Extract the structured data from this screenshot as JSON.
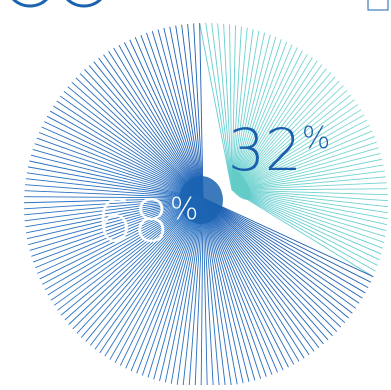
{
  "chart_data": {
    "type": "pie",
    "style": "radial-lines",
    "title": "",
    "slices": [
      {
        "name": "",
        "value": 32,
        "label": "32",
        "unit": "%",
        "color": "#5fd0c8"
      },
      {
        "name": "",
        "value": 68,
        "label": "68",
        "unit": "%",
        "color": "#1f5fb3"
      }
    ],
    "center_colors": {
      "large_slice": "#1a63b0",
      "small_slice": "#62cbc5"
    },
    "legend": "none",
    "grid": false
  }
}
